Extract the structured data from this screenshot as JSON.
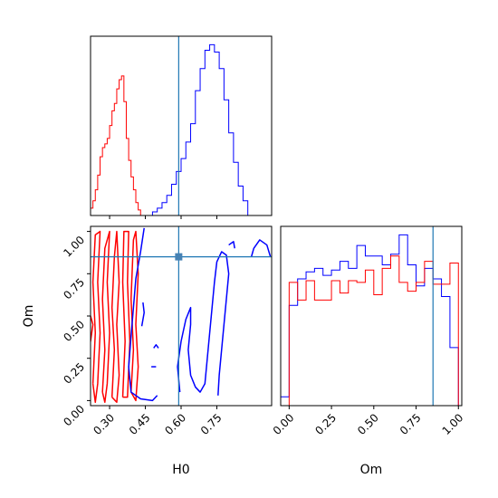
{
  "chart_data": {
    "type": "corner",
    "parameters": [
      "H0",
      "Om"
    ],
    "truth": {
      "H0": 0.59,
      "Om": 0.85
    },
    "colors": {
      "series_a": "#0000ff",
      "series_b": "#ff0000",
      "truth": "#1f77b4"
    },
    "panels": [
      {
        "id": "hist_H0",
        "type": "histogram",
        "x_range": [
          0.22,
          0.98
        ],
        "x_ticks": [
          0.3,
          0.45,
          0.6,
          0.75
        ],
        "x_tick_labels": [
          "0.30",
          "0.45",
          "0.60",
          "0.75"
        ],
        "series": [
          {
            "color": "#0000ff",
            "bins": [
              0.48,
              0.5,
              0.52,
              0.54,
              0.56,
              0.58,
              0.6,
              0.62,
              0.64,
              0.66,
              0.68,
              0.7,
              0.72,
              0.74,
              0.76,
              0.78,
              0.8,
              0.82,
              0.84,
              0.86,
              0.88
            ],
            "counts": [
              2,
              4,
              7,
              11,
              17,
              24,
              31,
              40,
              50,
              68,
              80,
              90,
              93,
              89,
              80,
              63,
              45,
              29,
              16,
              8
            ]
          },
          {
            "color": "#ff0000",
            "bins": [
              0.22,
              0.23,
              0.24,
              0.25,
              0.26,
              0.27,
              0.28,
              0.29,
              0.3,
              0.31,
              0.32,
              0.33,
              0.34,
              0.35,
              0.36,
              0.37,
              0.38,
              0.39,
              0.4,
              0.41,
              0.42,
              0.43
            ],
            "counts": [
              4,
              8,
              14,
              22,
              32,
              37,
              39,
              42,
              49,
              57,
              61,
              69,
              74,
              76,
              62,
              42,
              30,
              21,
              14,
              7,
              3
            ]
          }
        ]
      },
      {
        "id": "contour_H0_Om",
        "type": "contour",
        "x_range": [
          0.22,
          0.98
        ],
        "y_range": [
          -0.03,
          1.03
        ],
        "x_ticks": [
          0.3,
          0.45,
          0.6,
          0.75
        ],
        "x_tick_labels": [
          "0.30",
          "0.45",
          "0.60",
          "0.75"
        ],
        "y_ticks": [
          0.0,
          0.25,
          0.5,
          0.75,
          1.0
        ],
        "y_tick_labels": [
          "0.00",
          "0.25",
          "0.50",
          "0.75",
          "1.00"
        ],
        "xlabel": "H0",
        "ylabel": "Om",
        "contours": [
          {
            "color": "#ff0000",
            "points": [
              [
                0.23,
                0.1
              ],
              [
                0.24,
                0.4
              ],
              [
                0.23,
                0.7
              ],
              [
                0.24,
                0.98
              ],
              [
                0.26,
                1.0
              ],
              [
                0.25,
                0.7
              ],
              [
                0.26,
                0.4
              ],
              [
                0.25,
                0.1
              ],
              [
                0.24,
                -0.01
              ],
              [
                0.23,
                0.1
              ]
            ]
          },
          {
            "color": "#ff0000",
            "points": [
              [
                0.27,
                0.05
              ],
              [
                0.28,
                0.3
              ],
              [
                0.27,
                0.6
              ],
              [
                0.28,
                0.9
              ],
              [
                0.3,
                1.0
              ],
              [
                0.29,
                0.7
              ],
              [
                0.3,
                0.4
              ],
              [
                0.29,
                0.1
              ],
              [
                0.28,
                -0.01
              ],
              [
                0.27,
                0.05
              ]
            ]
          },
          {
            "color": "#ff0000",
            "points": [
              [
                0.31,
                0.02
              ],
              [
                0.32,
                0.3
              ],
              [
                0.31,
                0.55
              ],
              [
                0.32,
                0.85
              ],
              [
                0.33,
                1.0
              ],
              [
                0.34,
                0.7
              ],
              [
                0.33,
                0.45
              ],
              [
                0.34,
                0.15
              ],
              [
                0.33,
                -0.01
              ],
              [
                0.31,
                0.02
              ]
            ]
          },
          {
            "color": "#ff0000",
            "points": [
              [
                0.355,
                0.02
              ],
              [
                0.365,
                0.35
              ],
              [
                0.355,
                0.7
              ],
              [
                0.36,
                1.0
              ],
              [
                0.38,
                1.0
              ],
              [
                0.375,
                0.7
              ],
              [
                0.385,
                0.35
              ],
              [
                0.375,
                0.02
              ],
              [
                0.355,
                0.02
              ]
            ]
          },
          {
            "color": "#ff0000",
            "points": [
              [
                0.39,
                0.05
              ],
              [
                0.4,
                0.3
              ],
              [
                0.39,
                0.6
              ],
              [
                0.4,
                0.95
              ],
              [
                0.41,
                1.0
              ],
              [
                0.42,
                0.75
              ],
              [
                0.41,
                0.45
              ],
              [
                0.42,
                0.2
              ],
              [
                0.41,
                0.0
              ],
              [
                0.39,
                0.05
              ]
            ]
          },
          {
            "color": "#ff0000",
            "points": [
              [
                0.215,
                0.4
              ],
              [
                0.22,
                0.5
              ],
              [
                0.23,
                0.45
              ],
              [
                0.22,
                0.35
              ],
              [
                0.215,
                0.4
              ]
            ]
          },
          {
            "color": "#0000ff",
            "points": [
              [
                0.445,
                1.02
              ],
              [
                0.43,
                0.88
              ],
              [
                0.41,
                0.72
              ],
              [
                0.4,
                0.55
              ],
              [
                0.39,
                0.38
              ],
              [
                0.38,
                0.2
              ],
              [
                0.39,
                0.05
              ],
              [
                0.43,
                0.01
              ],
              [
                0.48,
                0.0
              ],
              [
                0.5,
                0.03
              ]
            ]
          },
          {
            "color": "#0000ff",
            "points": [
              [
                0.595,
                0.05
              ],
              [
                0.585,
                0.2
              ],
              [
                0.6,
                0.35
              ],
              [
                0.62,
                0.48
              ],
              [
                0.64,
                0.55
              ],
              [
                0.64,
                0.45
              ],
              [
                0.63,
                0.3
              ],
              [
                0.64,
                0.15
              ],
              [
                0.66,
                0.08
              ],
              [
                0.68,
                0.05
              ],
              [
                0.7,
                0.1
              ],
              [
                0.71,
                0.25
              ],
              [
                0.72,
                0.4
              ],
              [
                0.73,
                0.55
              ],
              [
                0.74,
                0.7
              ],
              [
                0.75,
                0.82
              ],
              [
                0.77,
                0.88
              ],
              [
                0.79,
                0.86
              ],
              [
                0.8,
                0.75
              ],
              [
                0.79,
                0.6
              ],
              [
                0.78,
                0.45
              ],
              [
                0.77,
                0.3
              ],
              [
                0.76,
                0.15
              ],
              [
                0.755,
                0.03
              ]
            ]
          },
          {
            "color": "#0000ff",
            "points": [
              [
                0.8,
                0.92
              ],
              [
                0.82,
                0.94
              ],
              [
                0.825,
                0.9
              ]
            ]
          },
          {
            "color": "#0000ff",
            "points": [
              [
                0.895,
                0.85
              ],
              [
                0.905,
                0.9
              ],
              [
                0.93,
                0.95
              ],
              [
                0.96,
                0.92
              ],
              [
                0.975,
                0.85
              ]
            ]
          },
          {
            "color": "#0000ff",
            "points": [
              [
                0.435,
                0.44
              ],
              [
                0.445,
                0.52
              ],
              [
                0.44,
                0.58
              ]
            ]
          },
          {
            "color": "#0000ff",
            "points": [
              [
                0.475,
                0.2
              ],
              [
                0.495,
                0.2
              ]
            ]
          },
          {
            "color": "#0000ff",
            "points": [
              [
                0.485,
                0.31
              ],
              [
                0.495,
                0.33
              ],
              [
                0.505,
                0.31
              ]
            ]
          }
        ]
      },
      {
        "id": "hist_Om",
        "type": "histogram",
        "x_range": [
          -0.05,
          1.02
        ],
        "x_ticks": [
          0.0,
          0.25,
          0.5,
          0.75,
          1.0
        ],
        "x_tick_labels": [
          "0.00",
          "0.25",
          "0.50",
          "0.75",
          "1.00"
        ],
        "xlabel": "Om",
        "series": [
          {
            "color": "#0000ff",
            "bins": [
              -0.05,
              0.0,
              0.05,
              0.1,
              0.15,
              0.2,
              0.25,
              0.3,
              0.35,
              0.4,
              0.45,
              0.5,
              0.55,
              0.6,
              0.65,
              0.7,
              0.75,
              0.8,
              0.85,
              0.9,
              0.95,
              1.0
            ],
            "counts": [
              0.05,
              0.57,
              0.72,
              0.76,
              0.78,
              0.74,
              0.77,
              0.82,
              0.78,
              0.91,
              0.85,
              0.85,
              0.8,
              0.86,
              0.97,
              0.8,
              0.68,
              0.78,
              0.72,
              0.62,
              0.33
            ]
          },
          {
            "color": "#ff0000",
            "bins": [
              0.0,
              0.05,
              0.1,
              0.15,
              0.2,
              0.25,
              0.3,
              0.35,
              0.4,
              0.45,
              0.5,
              0.55,
              0.6,
              0.65,
              0.7,
              0.75,
              0.8,
              0.85,
              0.9,
              0.95,
              1.0
            ],
            "counts": [
              0.7,
              0.6,
              0.71,
              0.6,
              0.6,
              0.71,
              0.64,
              0.71,
              0.7,
              0.77,
              0.63,
              0.78,
              0.85,
              0.7,
              0.65,
              0.7,
              0.82,
              0.69,
              0.69,
              0.81
            ]
          }
        ]
      }
    ]
  }
}
